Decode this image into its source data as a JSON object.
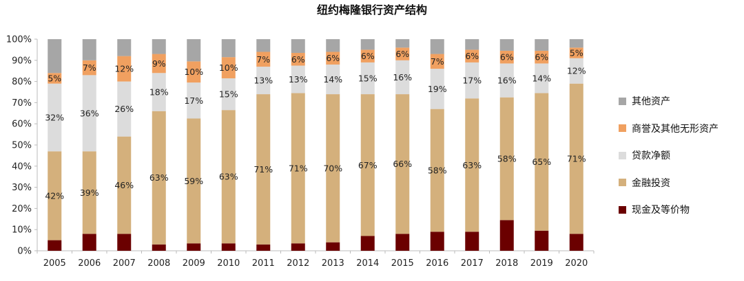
{
  "chart_data": {
    "type": "bar",
    "stacked": true,
    "title": "纽约梅隆银行资产结构",
    "categories": [
      "2005",
      "2006",
      "2007",
      "2008",
      "2009",
      "2010",
      "2011",
      "2012",
      "2013",
      "2014",
      "2015",
      "2016",
      "2017",
      "2018",
      "2019",
      "2020"
    ],
    "ylim": [
      0,
      100
    ],
    "yticks": [
      "0%",
      "10%",
      "20%",
      "30%",
      "40%",
      "50%",
      "60%",
      "70%",
      "80%",
      "90%",
      "100%"
    ],
    "grid": false,
    "legend_position": "right",
    "series": [
      {
        "name": "现金及等价物",
        "color": "#6b0000",
        "values": [
          5,
          8,
          8,
          3,
          3.5,
          3.5,
          3,
          3.5,
          4,
          7,
          8,
          9,
          9,
          14.5,
          9.5,
          8
        ],
        "labels": []
      },
      {
        "name": "金融投资",
        "color": "#d4b07c",
        "values": [
          42,
          39,
          46,
          63,
          59,
          63,
          71,
          71,
          70,
          67,
          66,
          58,
          63,
          58,
          65,
          71
        ],
        "labels": [
          "42%",
          "39%",
          "46%",
          "63%",
          "59%",
          "63%",
          "71%",
          "71%",
          "70%",
          "67%",
          "66%",
          "58%",
          "63%",
          "58%",
          "65%",
          "71%"
        ]
      },
      {
        "name": "贷款净额",
        "color": "#dcdcdc",
        "values": [
          32,
          36,
          26,
          18,
          17,
          15,
          13,
          13,
          14,
          15,
          16,
          19,
          17,
          16,
          14,
          12
        ],
        "labels": [
          "32%",
          "36%",
          "26%",
          "18%",
          "17%",
          "15%",
          "13%",
          "13%",
          "14%",
          "15%",
          "16%",
          "19%",
          "17%",
          "16%",
          "14%",
          "12%"
        ]
      },
      {
        "name": "商誉及其他无形资产",
        "color": "#f0a060",
        "values": [
          5,
          7,
          12,
          9,
          10,
          10,
          7,
          6,
          6,
          6,
          6,
          7,
          6,
          6,
          6,
          5
        ],
        "labels": [
          "5%",
          "7%",
          "12%",
          "9%",
          "10%",
          "10%",
          "7%",
          "6%",
          "6%",
          "6%",
          "6%",
          "7%",
          "6%",
          "6%",
          "6%",
          "5%"
        ]
      },
      {
        "name": "其他资产",
        "color": "#a6a6a6",
        "values": [
          16,
          10,
          8,
          7,
          10.5,
          8.5,
          6,
          6.5,
          6,
          5,
          4,
          7,
          5,
          5.5,
          5.5,
          4
        ],
        "labels": []
      }
    ],
    "legend_order": [
      "其他资产",
      "商誉及其他无形资产",
      "贷款净额",
      "金融投资",
      "现金及等价物"
    ]
  }
}
